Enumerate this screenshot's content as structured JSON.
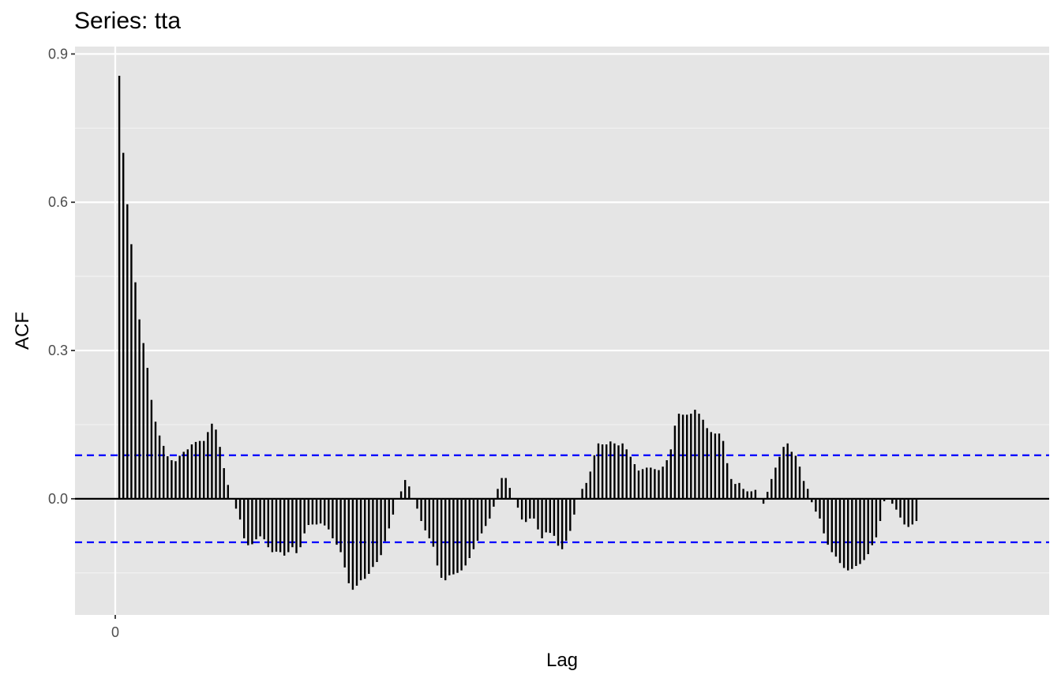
{
  "chart_data": {
    "type": "bar",
    "title": "Series: tta",
    "xlabel": "Lag",
    "ylabel": "ACF",
    "x_tick_labels": [
      {
        "value": 0,
        "label": "0"
      }
    ],
    "y_tick_labels": [
      {
        "value": 0.0,
        "label": "0.0"
      },
      {
        "value": 0.3,
        "label": "0.3"
      },
      {
        "value": 0.6,
        "label": "0.6"
      },
      {
        "value": 0.9,
        "label": "0.9"
      }
    ],
    "ylim": [
      -0.235,
      0.915
    ],
    "xlim": [
      -0.055,
      0.0
    ],
    "grid": true,
    "confidence_bound": 0.088,
    "lags_from": 1,
    "values": [
      0.856,
      0.7,
      0.596,
      0.515,
      0.438,
      0.363,
      0.315,
      0.265,
      0.2,
      0.156,
      0.128,
      0.107,
      0.086,
      0.078,
      0.076,
      0.087,
      0.095,
      0.1,
      0.11,
      0.115,
      0.117,
      0.117,
      0.135,
      0.152,
      0.14,
      0.105,
      0.062,
      0.028,
      0.0,
      -0.02,
      -0.042,
      -0.08,
      -0.094,
      -0.092,
      -0.082,
      -0.076,
      -0.082,
      -0.098,
      -0.108,
      -0.107,
      -0.108,
      -0.115,
      -0.108,
      -0.098,
      -0.11,
      -0.098,
      -0.07,
      -0.053,
      -0.052,
      -0.052,
      -0.05,
      -0.054,
      -0.062,
      -0.08,
      -0.093,
      -0.108,
      -0.139,
      -0.171,
      -0.184,
      -0.176,
      -0.165,
      -0.162,
      -0.152,
      -0.138,
      -0.128,
      -0.114,
      -0.086,
      -0.06,
      -0.032,
      0.0,
      0.015,
      0.038,
      0.025,
      0.0,
      -0.02,
      -0.045,
      -0.064,
      -0.08,
      -0.097,
      -0.135,
      -0.16,
      -0.165,
      -0.155,
      -0.153,
      -0.15,
      -0.145,
      -0.135,
      -0.12,
      -0.102,
      -0.085,
      -0.07,
      -0.055,
      -0.04,
      -0.016,
      0.02,
      0.042,
      0.042,
      0.022,
      0.0,
      -0.018,
      -0.042,
      -0.047,
      -0.04,
      -0.04,
      -0.062,
      -0.08,
      -0.068,
      -0.069,
      -0.075,
      -0.095,
      -0.102,
      -0.085,
      -0.065,
      -0.032,
      0.0,
      0.02,
      0.032,
      0.055,
      0.088,
      0.112,
      0.11,
      0.11,
      0.116,
      0.112,
      0.108,
      0.112,
      0.1,
      0.085,
      0.07,
      0.057,
      0.06,
      0.063,
      0.063,
      0.06,
      0.058,
      0.065,
      0.078,
      0.1,
      0.148,
      0.172,
      0.17,
      0.17,
      0.172,
      0.18,
      0.172,
      0.16,
      0.143,
      0.135,
      0.132,
      0.132,
      0.117,
      0.072,
      0.04,
      0.03,
      0.032,
      0.02,
      0.015,
      0.015,
      0.018,
      0.0,
      -0.01,
      0.014,
      0.04,
      0.063,
      0.085,
      0.105,
      0.112,
      0.095,
      0.087,
      0.065,
      0.036,
      0.02,
      -0.007,
      -0.026,
      -0.04,
      -0.07,
      -0.093,
      -0.108,
      -0.117,
      -0.13,
      -0.14,
      -0.145,
      -0.142,
      -0.136,
      -0.132,
      -0.124,
      -0.112,
      -0.094,
      -0.078,
      -0.045,
      -0.005,
      0.0,
      -0.01,
      -0.022,
      -0.038,
      -0.052,
      -0.057,
      -0.052,
      -0.045
    ]
  }
}
